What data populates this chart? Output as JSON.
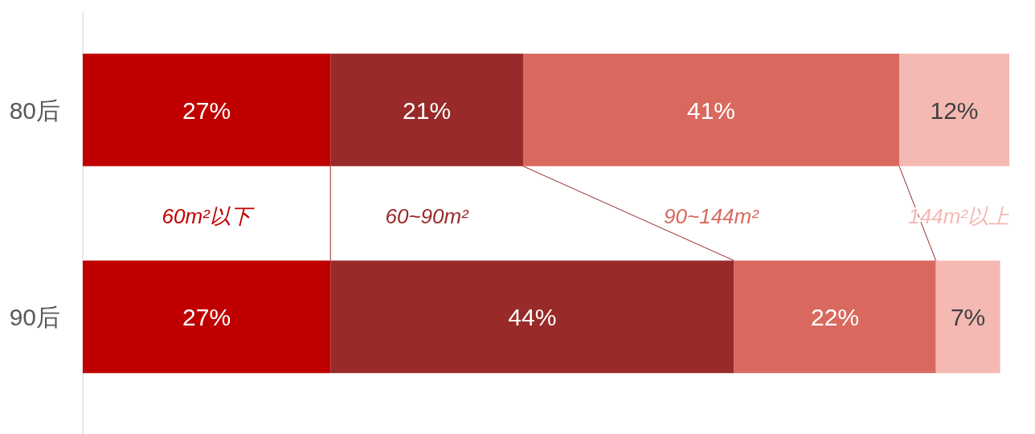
{
  "chart_data": {
    "type": "bar",
    "orientation": "horizontal",
    "stacked": true,
    "categories": [
      "80后",
      "90后"
    ],
    "series": [
      {
        "name": "60m²以下",
        "color": "#c00000",
        "values": [
          27,
          27
        ],
        "value_labels": [
          "27%",
          "27%"
        ]
      },
      {
        "name": "60~90m²",
        "color": "#982a2a",
        "values": [
          21,
          44
        ],
        "value_labels": [
          "21%",
          "44%"
        ]
      },
      {
        "name": "90~144m²",
        "color": "#d9695e",
        "values": [
          41,
          22
        ],
        "value_labels": [
          "41%",
          "22%"
        ]
      },
      {
        "name": "144m²以上",
        "color": "#f4b9b2",
        "values": [
          12,
          7
        ],
        "value_labels": [
          "12%",
          "7%"
        ]
      }
    ]
  }
}
